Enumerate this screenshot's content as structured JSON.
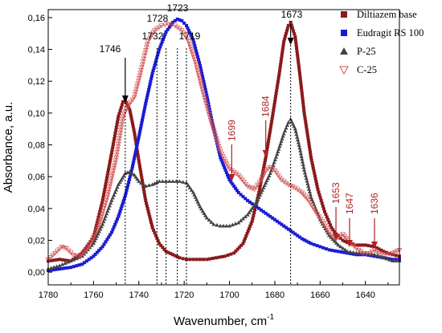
{
  "chart_data": {
    "type": "line",
    "xlabel": "Wavenumber, cm",
    "xlabel_sup": "-1",
    "ylabel": "Absorbance, a.u.",
    "xlim": [
      1780,
      1625
    ],
    "ylim": [
      -0.008,
      0.165
    ],
    "x_ticks": [
      1780,
      1760,
      1740,
      1720,
      1700,
      1680,
      1660,
      1640
    ],
    "y_ticks": [
      0.0,
      0.02,
      0.04,
      0.06,
      0.08,
      0.1,
      0.12,
      0.14,
      0.16
    ],
    "y_tick_labels": [
      "0,00",
      "0,02",
      "0,04",
      "0,06",
      "0,08",
      "0,10",
      "0,12",
      "0,14",
      "0,16"
    ],
    "legend_position": "top-right",
    "series": [
      {
        "name": "Diltiazem base",
        "marker": "square",
        "color": "#8b1a1a",
        "x": [
          1780,
          1775,
          1770,
          1765,
          1760,
          1756,
          1752,
          1749,
          1747,
          1746,
          1744,
          1742,
          1740,
          1737,
          1734,
          1731,
          1728,
          1725,
          1722,
          1719,
          1716,
          1713,
          1710,
          1706,
          1702,
          1698,
          1694,
          1690,
          1687,
          1684,
          1681,
          1678,
          1676,
          1674,
          1673,
          1671,
          1669,
          1667,
          1664,
          1661,
          1658,
          1655,
          1653,
          1650,
          1647,
          1644,
          1640,
          1636,
          1632,
          1628,
          1625
        ],
        "y": [
          0.007,
          0.008,
          0.007,
          0.012,
          0.022,
          0.045,
          0.075,
          0.098,
          0.107,
          0.108,
          0.102,
          0.088,
          0.07,
          0.045,
          0.028,
          0.018,
          0.013,
          0.011,
          0.009,
          0.008,
          0.008,
          0.008,
          0.008,
          0.009,
          0.01,
          0.012,
          0.018,
          0.032,
          0.05,
          0.072,
          0.098,
          0.125,
          0.145,
          0.155,
          0.157,
          0.148,
          0.125,
          0.1,
          0.072,
          0.052,
          0.038,
          0.028,
          0.024,
          0.02,
          0.018,
          0.017,
          0.017,
          0.016,
          0.013,
          0.011,
          0.01
        ]
      },
      {
        "name": "Eudragit RS 100",
        "marker": "square",
        "color": "#1a1ad4",
        "x": [
          1780,
          1775,
          1770,
          1765,
          1760,
          1756,
          1752,
          1749,
          1746,
          1743,
          1740,
          1737,
          1734,
          1731,
          1728,
          1725,
          1723,
          1721,
          1719,
          1716,
          1713,
          1710,
          1707,
          1704,
          1700,
          1696,
          1692,
          1688,
          1684,
          1680,
          1676,
          1672,
          1668,
          1664,
          1660,
          1656,
          1652,
          1648,
          1644,
          1640,
          1636,
          1632,
          1628,
          1625
        ],
        "y": [
          0.001,
          0.002,
          0.003,
          0.005,
          0.01,
          0.016,
          0.025,
          0.035,
          0.048,
          0.065,
          0.085,
          0.106,
          0.125,
          0.14,
          0.151,
          0.157,
          0.159,
          0.158,
          0.155,
          0.146,
          0.13,
          0.111,
          0.09,
          0.072,
          0.058,
          0.05,
          0.045,
          0.041,
          0.037,
          0.033,
          0.029,
          0.025,
          0.021,
          0.018,
          0.016,
          0.014,
          0.013,
          0.012,
          0.011,
          0.011,
          0.01,
          0.009,
          0.008,
          0.008
        ]
      },
      {
        "name": "P-25",
        "marker": "triangle",
        "color": "#444444",
        "x": [
          1780,
          1775,
          1770,
          1765,
          1760,
          1756,
          1752,
          1749,
          1746,
          1744,
          1742,
          1740,
          1737,
          1734,
          1731,
          1728,
          1725,
          1722,
          1719,
          1716,
          1713,
          1710,
          1707,
          1704,
          1700,
          1696,
          1692,
          1688,
          1685,
          1682,
          1679,
          1676,
          1674,
          1673,
          1671,
          1669,
          1667,
          1664,
          1660,
          1656,
          1652,
          1648,
          1644,
          1640,
          1636,
          1632,
          1628,
          1625
        ],
        "y": [
          0.002,
          0.004,
          0.007,
          0.01,
          0.018,
          0.03,
          0.045,
          0.055,
          0.062,
          0.063,
          0.061,
          0.057,
          0.054,
          0.055,
          0.057,
          0.057,
          0.057,
          0.057,
          0.056,
          0.05,
          0.041,
          0.034,
          0.03,
          0.029,
          0.029,
          0.031,
          0.036,
          0.044,
          0.053,
          0.062,
          0.074,
          0.087,
          0.094,
          0.096,
          0.09,
          0.078,
          0.064,
          0.047,
          0.033,
          0.023,
          0.017,
          0.013,
          0.012,
          0.012,
          0.011,
          0.009,
          0.007,
          0.007
        ]
      },
      {
        "name": "C-25",
        "marker": "triangle-open",
        "color": "#d25050",
        "x": [
          1780,
          1777,
          1774,
          1772,
          1769,
          1766,
          1762,
          1758,
          1754,
          1750,
          1747,
          1745,
          1742,
          1739,
          1736,
          1733,
          1730,
          1727,
          1724,
          1721,
          1718,
          1715,
          1712,
          1708,
          1704,
          1700,
          1696,
          1692,
          1689,
          1686,
          1684,
          1682,
          1680,
          1677,
          1674,
          1671,
          1668,
          1665,
          1662,
          1659,
          1656,
          1653,
          1650,
          1647,
          1644,
          1641,
          1638,
          1636,
          1634,
          1631,
          1628,
          1625
        ],
        "y": [
          0.008,
          0.012,
          0.016,
          0.015,
          0.011,
          0.01,
          0.016,
          0.028,
          0.047,
          0.072,
          0.098,
          0.104,
          0.11,
          0.127,
          0.145,
          0.152,
          0.155,
          0.156,
          0.155,
          0.152,
          0.145,
          0.132,
          0.115,
          0.094,
          0.076,
          0.065,
          0.061,
          0.054,
          0.052,
          0.058,
          0.064,
          0.066,
          0.064,
          0.058,
          0.055,
          0.053,
          0.05,
          0.045,
          0.038,
          0.032,
          0.025,
          0.021,
          0.024,
          0.019,
          0.015,
          0.012,
          0.012,
          0.014,
          0.012,
          0.011,
          0.012,
          0.014
        ]
      }
    ],
    "annotations": {
      "black": [
        {
          "label": "1746",
          "x": 1746,
          "style": "arrow"
        },
        {
          "label": "1732",
          "x": 1732,
          "style": "line"
        },
        {
          "label": "1728",
          "x": 1728,
          "style": "line"
        },
        {
          "label": "1723",
          "x": 1723,
          "style": "line"
        },
        {
          "label": "1719",
          "x": 1719,
          "style": "line"
        },
        {
          "label": "1673",
          "x": 1673,
          "style": "arrow"
        }
      ],
      "red": [
        {
          "label": "1699",
          "x": 1699
        },
        {
          "label": "1684",
          "x": 1684
        },
        {
          "label": "1653",
          "x": 1653
        },
        {
          "label": "1647",
          "x": 1647
        },
        {
          "label": "1636",
          "x": 1636
        }
      ]
    }
  }
}
